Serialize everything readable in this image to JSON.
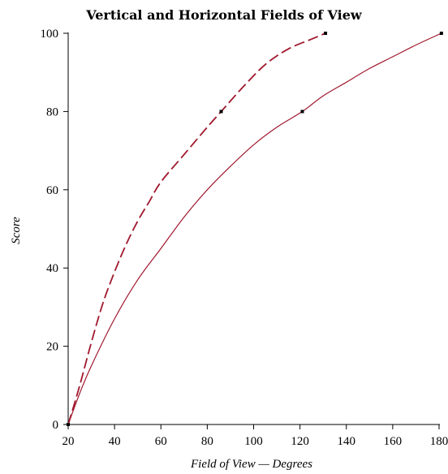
{
  "chart_data": {
    "type": "line",
    "title": "Vertical and Horizontal Fields of View",
    "xlabel": "Field of View — Degrees",
    "ylabel": "Score",
    "xlim": [
      20,
      180
    ],
    "ylim": [
      0,
      100
    ],
    "x_ticks": [
      20,
      40,
      60,
      80,
      100,
      120,
      140,
      160,
      180
    ],
    "y_ticks": [
      0,
      20,
      40,
      60,
      80,
      100
    ],
    "grid": false,
    "colors": {
      "curves": "#a0182d",
      "markers": "#000000"
    },
    "series": [
      {
        "style": "dashed",
        "points": [
          [
            20,
            0
          ],
          [
            25,
            10
          ],
          [
            30,
            21
          ],
          [
            35,
            31
          ],
          [
            40,
            39
          ],
          [
            45,
            46
          ],
          [
            50,
            52
          ],
          [
            55,
            57
          ],
          [
            60,
            62
          ],
          [
            70,
            69
          ],
          [
            80,
            76
          ],
          [
            86,
            80
          ],
          [
            95,
            86
          ],
          [
            105,
            92
          ],
          [
            115,
            96
          ],
          [
            125,
            98.5
          ],
          [
            131,
            100
          ]
        ],
        "markers": [
          [
            20,
            0
          ],
          [
            86,
            80
          ],
          [
            131,
            100
          ]
        ]
      },
      {
        "style": "solid",
        "points": [
          [
            20,
            0
          ],
          [
            25,
            8
          ],
          [
            30,
            15
          ],
          [
            40,
            27
          ],
          [
            50,
            37
          ],
          [
            60,
            45
          ],
          [
            70,
            53
          ],
          [
            80,
            60
          ],
          [
            90,
            66
          ],
          [
            100,
            71.5
          ],
          [
            110,
            76
          ],
          [
            121,
            80
          ],
          [
            130,
            84
          ],
          [
            140,
            87.5
          ],
          [
            150,
            91
          ],
          [
            160,
            94
          ],
          [
            170,
            97
          ],
          [
            181,
            100
          ]
        ],
        "markers": [
          [
            20,
            0
          ],
          [
            121,
            80
          ],
          [
            181,
            100
          ]
        ]
      }
    ]
  }
}
